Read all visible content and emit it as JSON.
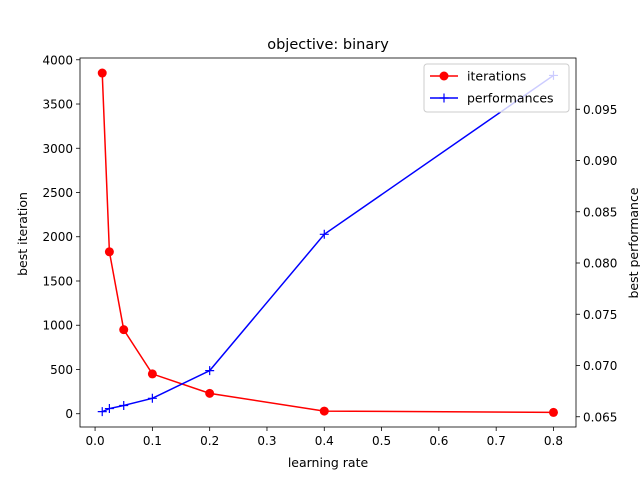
{
  "chart_data": {
    "type": "line",
    "title": "objective: binary",
    "xlabel": "learning rate",
    "ylabel": "best iteration",
    "y2label": "best performance",
    "xlim": [
      -0.0263,
      0.8393
    ],
    "ylim": [
      -150,
      4020
    ],
    "y2lim": [
      0.064,
      0.1
    ],
    "x_ticks": [
      0.0,
      0.1,
      0.2,
      0.3,
      0.4,
      0.5,
      0.6,
      0.7,
      0.8
    ],
    "x_tick_labels": [
      "0.0",
      "0.1",
      "0.2",
      "0.3",
      "0.4",
      "0.5",
      "0.6",
      "0.7",
      "0.8"
    ],
    "y_ticks": [
      0,
      500,
      1000,
      1500,
      2000,
      2500,
      3000,
      3500,
      4000
    ],
    "y_tick_labels": [
      "0",
      "500",
      "1000",
      "1500",
      "2000",
      "2500",
      "3000",
      "3500",
      "4000"
    ],
    "y2_ticks": [
      0.065,
      0.07,
      0.075,
      0.08,
      0.085,
      0.09,
      0.095
    ],
    "y2_tick_labels": [
      "0.065",
      "0.070",
      "0.075",
      "0.080",
      "0.085",
      "0.090",
      "0.095"
    ],
    "grid": false,
    "legend_position": "top-right",
    "series": [
      {
        "name": "iterations",
        "axis": "left",
        "color": "#ff0000",
        "marker": "circle",
        "x": [
          0.0125,
          0.025,
          0.05,
          0.1,
          0.2,
          0.4,
          0.8
        ],
        "values": [
          3850,
          1830,
          950,
          450,
          230,
          30,
          15
        ]
      },
      {
        "name": "performances",
        "axis": "right",
        "color": "#0000ff",
        "marker": "plus",
        "x": [
          0.0125,
          0.025,
          0.05,
          0.1,
          0.2,
          0.4,
          0.8
        ],
        "values": [
          0.0655,
          0.0658,
          0.0661,
          0.0668,
          0.0695,
          0.0828,
          0.0983
        ]
      }
    ]
  }
}
